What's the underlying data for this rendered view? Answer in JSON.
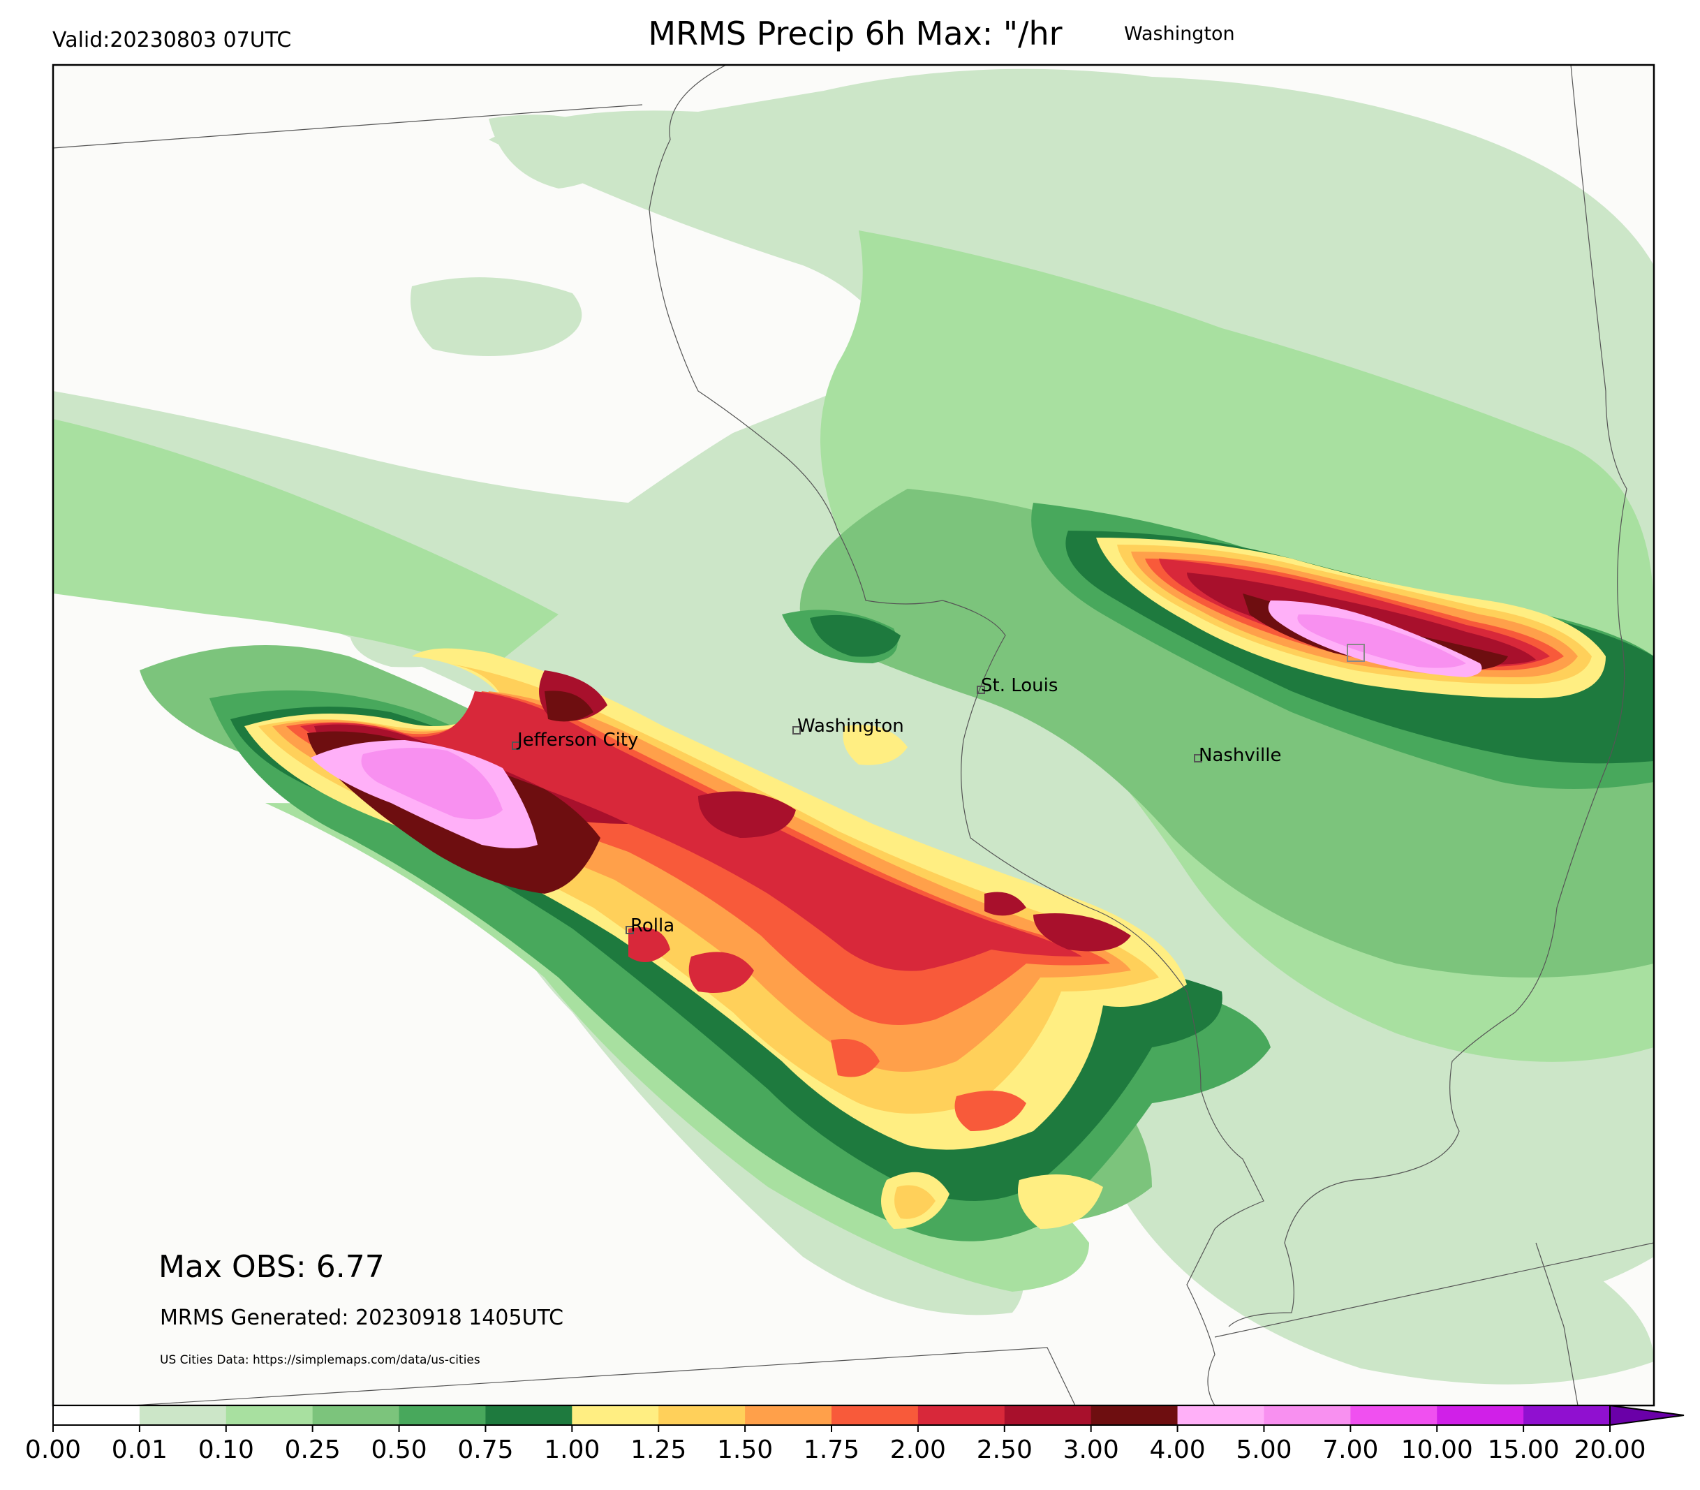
{
  "header": {
    "valid": "Valid:20230803 07UTC",
    "title": "MRMS Precip 6h Max: \"/hr",
    "region": "Washington"
  },
  "map": {
    "cities": [
      {
        "name": "Jefferson City"
      },
      {
        "name": "Washington"
      },
      {
        "name": "St. Louis"
      },
      {
        "name": "Nashville"
      },
      {
        "name": "Rolla"
      }
    ],
    "max_obs": "Max OBS: 6.77",
    "generated": "MRMS Generated: 20230918 1405UTC",
    "source": "US Cities Data: https://simplemaps.com/data/us-cities"
  },
  "colorbar": {
    "ticks": [
      "0.00",
      "0.01",
      "0.10",
      "0.25",
      "0.50",
      "0.75",
      "1.00",
      "1.25",
      "1.50",
      "1.75",
      "2.00",
      "2.50",
      "3.00",
      "4.00",
      "5.00",
      "7.00",
      "10.00",
      "15.00",
      "20.00"
    ],
    "colors": [
      "#ffffff",
      "#cce6c8",
      "#a8e0a0",
      "#7cc47c",
      "#48a85c",
      "#1e7a3e",
      "#ffee82",
      "#ffd05a",
      "#ffa04a",
      "#f85a3a",
      "#d8283a",
      "#a8102c",
      "#6e0e10",
      "#ffb0f8",
      "#f890f0",
      "#f050f0",
      "#d020e8",
      "#9010d0"
    ],
    "extend_color": "#6a00a8"
  }
}
